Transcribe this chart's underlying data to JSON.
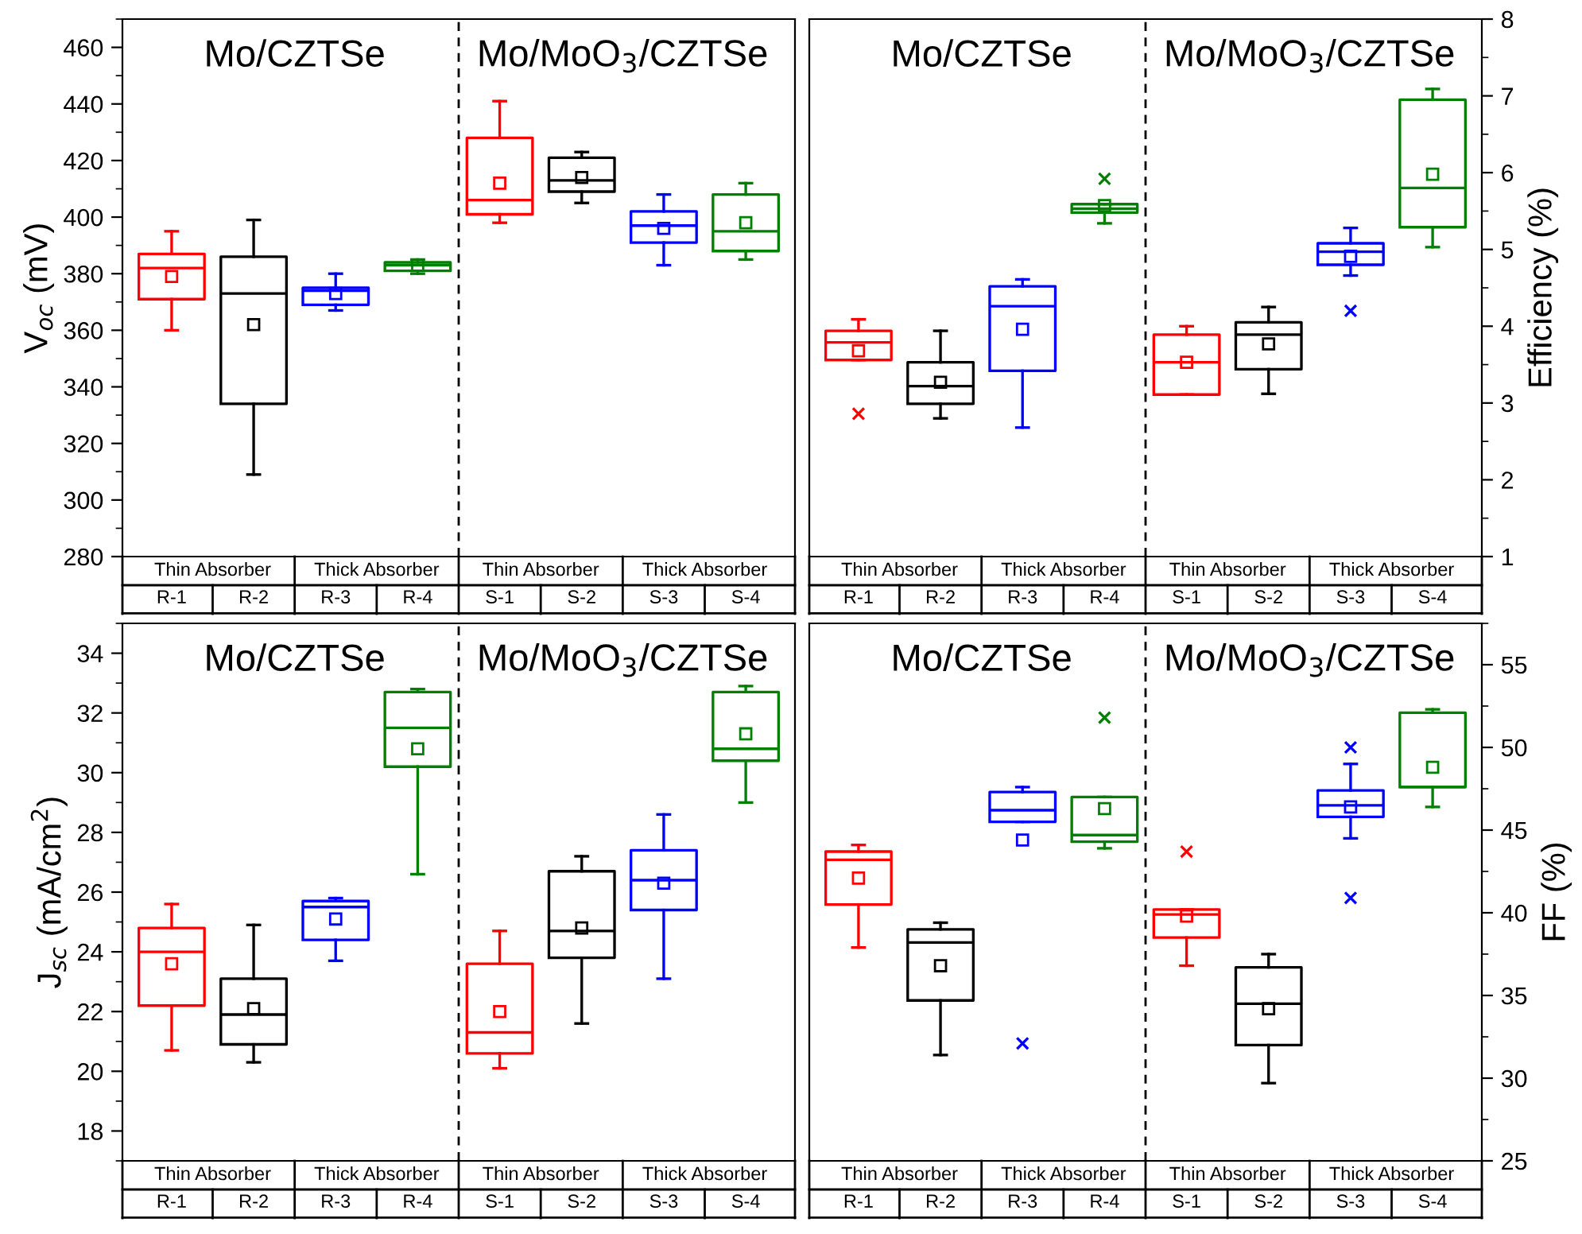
{
  "chart_data": [
    {
      "type": "box",
      "ylabel": "V$_{oc}$ (mV)",
      "categories": [
        "R-1",
        "R-2",
        "R-3",
        "R-4",
        "S-1",
        "S-2",
        "S-3",
        "S-4"
      ],
      "colors": [
        "#ff0000",
        "#000000",
        "#0000ff",
        "#008000",
        "#ff0000",
        "#000000",
        "#0000ff",
        "#008000"
      ],
      "annotations": [
        "Mo/CZTSe",
        "Mo/MoO$_{3}$/CZTSe",
        "Thin Absorber",
        "Thick Absorber",
        "Thin Absorber",
        "Thick Absorber"
      ],
      "ylim": [
        280,
        470
      ],
      "yticks": [
        280,
        300,
        320,
        340,
        360,
        380,
        400,
        420,
        440,
        460
      ],
      "boxes": [
        {
          "low": 360,
          "q1": 371,
          "median": 382,
          "q3": 387,
          "high": 395,
          "mean": 379
        },
        {
          "low": 309,
          "q1": 334,
          "median": 373,
          "q3": 386,
          "high": 399,
          "mean": 362
        },
        {
          "low": 367,
          "q1": 369,
          "median": 374,
          "q3": 375,
          "high": 380,
          "mean": 373
        },
        {
          "low": 380,
          "q1": 381,
          "median": 383,
          "q3": 384,
          "high": 385,
          "mean": 383
        },
        {
          "low": 398,
          "q1": 401,
          "median": 406,
          "q3": 428,
          "high": 441,
          "mean": 412
        },
        {
          "low": 405,
          "q1": 409,
          "median": 413,
          "q3": 421,
          "high": 423,
          "mean": 414
        },
        {
          "low": 383,
          "q1": 391,
          "median": 397,
          "q3": 402,
          "high": 408,
          "mean": 396
        },
        {
          "low": 385,
          "q1": 388,
          "median": 395,
          "q3": 408,
          "high": 412,
          "mean": 398
        }
      ]
    },
    {
      "type": "box",
      "ylabel": "Efficiency (%)",
      "categories": [
        "R-1",
        "R-2",
        "R-3",
        "R-4",
        "S-1",
        "S-2",
        "S-3",
        "S-4"
      ],
      "colors": [
        "#ff0000",
        "#000000",
        "#0000ff",
        "#008000",
        "#ff0000",
        "#000000",
        "#0000ff",
        "#008000"
      ],
      "annotations": [
        "Mo/CZTSe",
        "Mo/MoO$_{3}$/CZTSe",
        "Thin Absorber",
        "Thick Absorber",
        "Thin Absorber",
        "Thick Absorber"
      ],
      "ylim": [
        1,
        8
      ],
      "yticks": [
        1,
        2,
        3,
        4,
        5,
        6,
        7,
        8
      ],
      "boxes": [
        {
          "low": 3.56,
          "q1": 3.56,
          "median": 3.79,
          "q3": 3.94,
          "high": 4.09,
          "mean": 3.68,
          "outliers": [
            2.86
          ]
        },
        {
          "low": 2.8,
          "q1": 2.99,
          "median": 3.22,
          "q3": 3.53,
          "high": 3.94,
          "mean": 3.27
        },
        {
          "low": 2.68,
          "q1": 3.42,
          "median": 4.26,
          "q3": 4.52,
          "high": 4.61,
          "mean": 3.96
        },
        {
          "low": 5.34,
          "q1": 5.48,
          "median": 5.53,
          "q3": 5.59,
          "high": 5.59,
          "mean": 5.57,
          "outliers": [
            5.92
          ]
        },
        {
          "low": 3.11,
          "q1": 3.11,
          "median": 3.53,
          "q3": 3.89,
          "high": 4.0,
          "mean": 3.53
        },
        {
          "low": 3.12,
          "q1": 3.44,
          "median": 3.89,
          "q3": 4.05,
          "high": 4.25,
          "mean": 3.77
        },
        {
          "low": 4.66,
          "q1": 4.8,
          "median": 4.97,
          "q3": 5.08,
          "high": 5.28,
          "mean": 4.91,
          "outliers": [
            4.2
          ]
        },
        {
          "low": 5.03,
          "q1": 5.29,
          "median": 5.8,
          "q3": 6.95,
          "high": 7.09,
          "mean": 5.98
        }
      ]
    },
    {
      "type": "box",
      "ylabel": "J$_{sc}$ (mA/cm$^{2}$)",
      "categories": [
        "R-1",
        "R-2",
        "R-3",
        "R-4",
        "S-1",
        "S-2",
        "S-3",
        "S-4"
      ],
      "colors": [
        "#ff0000",
        "#000000",
        "#0000ff",
        "#008000",
        "#ff0000",
        "#000000",
        "#0000ff",
        "#008000"
      ],
      "annotations": [
        "Mo/CZTSe",
        "Mo/MoO$_{3}$/CZTSe",
        "Thin Absorber",
        "Thick Absorber",
        "Thin Absorber",
        "Thick Absorber"
      ],
      "ylim": [
        17,
        35
      ],
      "yticks": [
        18,
        20,
        22,
        24,
        26,
        28,
        30,
        32,
        34
      ],
      "boxes": [
        {
          "low": 20.7,
          "q1": 22.2,
          "median": 24.0,
          "q3": 24.8,
          "high": 25.6,
          "mean": 23.6
        },
        {
          "low": 20.3,
          "q1": 20.9,
          "median": 21.9,
          "q3": 23.1,
          "high": 24.9,
          "mean": 22.1
        },
        {
          "low": 23.7,
          "q1": 24.4,
          "median": 25.5,
          "q3": 25.7,
          "high": 25.8,
          "mean": 25.1
        },
        {
          "low": 26.6,
          "q1": 30.2,
          "median": 31.5,
          "q3": 32.7,
          "high": 32.8,
          "mean": 30.8
        },
        {
          "low": 20.1,
          "q1": 20.6,
          "median": 21.3,
          "q3": 23.6,
          "high": 24.7,
          "mean": 22.0
        },
        {
          "low": 21.6,
          "q1": 23.8,
          "median": 24.7,
          "q3": 26.7,
          "high": 27.2,
          "mean": 24.8
        },
        {
          "low": 23.1,
          "q1": 25.4,
          "median": 26.4,
          "q3": 27.4,
          "high": 28.6,
          "mean": 26.3
        },
        {
          "low": 29.0,
          "q1": 30.4,
          "median": 30.8,
          "q3": 32.7,
          "high": 32.9,
          "mean": 31.3
        }
      ]
    },
    {
      "type": "box",
      "ylabel": "FF (%)",
      "categories": [
        "R-1",
        "R-2",
        "R-3",
        "R-4",
        "S-1",
        "S-2",
        "S-3",
        "S-4"
      ],
      "colors": [
        "#ff0000",
        "#000000",
        "#0000ff",
        "#008000",
        "#ff0000",
        "#000000",
        "#0000ff",
        "#008000"
      ],
      "annotations": [
        "Mo/CZTSe",
        "Mo/MoO$_{3}$/CZTSe",
        "Thin Absorber",
        "Thick Absorber",
        "Thin Absorber",
        "Thick Absorber"
      ],
      "ylim": [
        25,
        57.5
      ],
      "yticks": [
        25,
        30,
        35,
        40,
        45,
        50,
        55
      ],
      "boxes": [
        {
          "low": 37.9,
          "q1": 40.5,
          "median": 43.2,
          "q3": 43.7,
          "high": 44.1,
          "mean": 42.1
        },
        {
          "low": 31.4,
          "q1": 34.7,
          "median": 38.2,
          "q3": 39.0,
          "high": 39.4,
          "mean": 36.8
        },
        {
          "low": 45.5,
          "q1": 45.5,
          "median": 46.2,
          "q3": 47.3,
          "high": 47.6,
          "mean": 44.4,
          "outliers": [
            32.1
          ]
        },
        {
          "low": 43.9,
          "q1": 44.3,
          "median": 44.7,
          "q3": 47.0,
          "high": 47.0,
          "mean": 46.3,
          "outliers": [
            51.8
          ]
        },
        {
          "low": 36.8,
          "q1": 38.5,
          "median": 39.9,
          "q3": 40.2,
          "high": 40.2,
          "mean": 39.8,
          "outliers": [
            43.7
          ]
        },
        {
          "low": 29.7,
          "q1": 32.0,
          "median": 34.5,
          "q3": 36.7,
          "high": 37.5,
          "mean": 34.2
        },
        {
          "low": 44.5,
          "q1": 45.8,
          "median": 46.5,
          "q3": 47.4,
          "high": 49.0,
          "mean": 46.4,
          "outliers": [
            50.0,
            40.9
          ]
        },
        {
          "low": 46.4,
          "q1": 47.6,
          "median": 47.6,
          "q3": 52.1,
          "high": 52.3,
          "mean": 48.8
        }
      ]
    }
  ]
}
